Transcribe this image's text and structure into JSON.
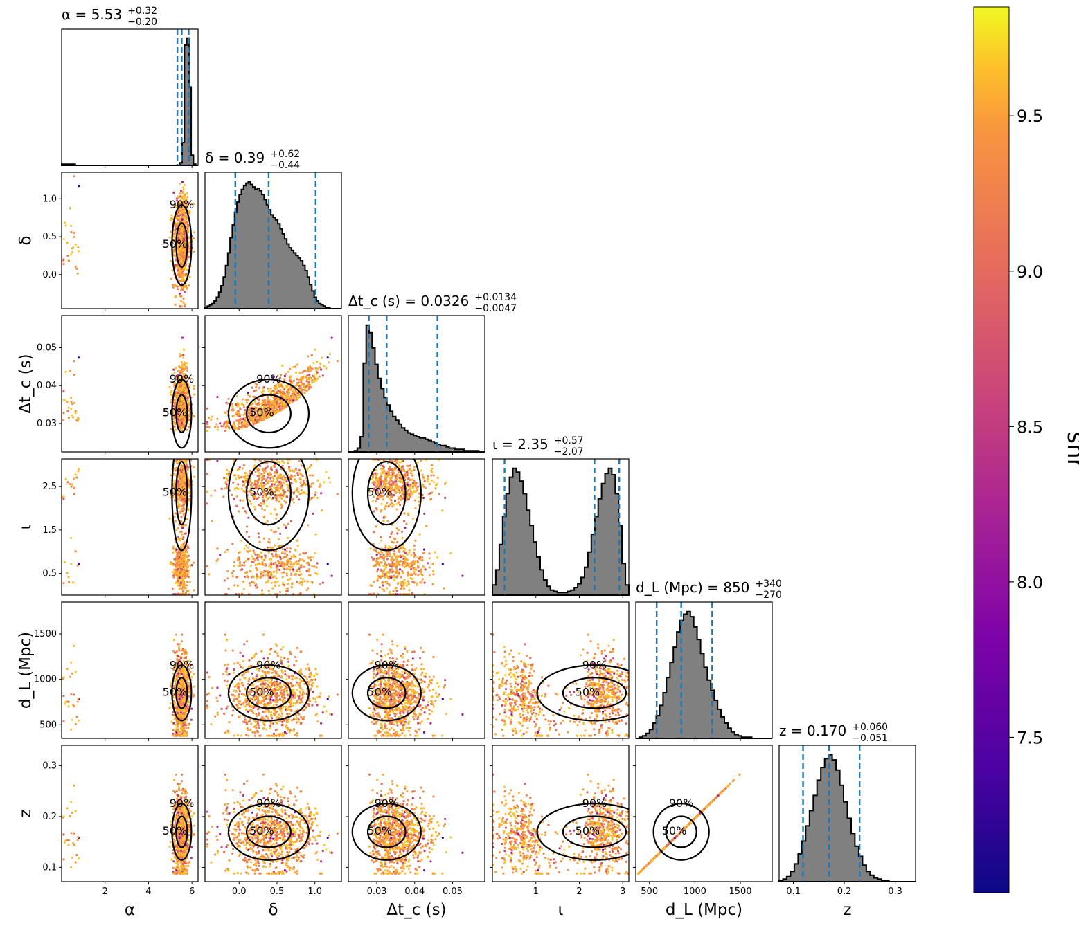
{
  "chart_data": {
    "type": "corner",
    "parameters": [
      {
        "key": "alpha",
        "label": "α",
        "median": "5.53",
        "plus": "+0.32",
        "minus": "−0.20",
        "title_prefix": "α = ",
        "range": [
          0,
          6.283
        ],
        "ticks": [
          2,
          4,
          6
        ],
        "tick_labels": [
          "2",
          "4",
          "6"
        ],
        "quantiles": [
          5.33,
          5.53,
          5.85
        ]
      },
      {
        "key": "delta",
        "label": "δ",
        "median": "0.39",
        "plus": "+0.62",
        "minus": "−0.44",
        "title_prefix": "δ = ",
        "range": [
          -0.45,
          1.35
        ],
        "ticks": [
          0.0,
          0.5,
          1.0
        ],
        "tick_labels": [
          "0.0",
          "0.5",
          "1.0"
        ],
        "quantiles": [
          -0.05,
          0.39,
          1.01
        ]
      },
      {
        "key": "dtc",
        "label": "Δt_c (s)",
        "median": "0.0326",
        "plus": "+0.0134",
        "minus": "−0.0047",
        "title_prefix": "Δt_c (s) = ",
        "range": [
          0.0225,
          0.0585
        ],
        "ticks": [
          0.03,
          0.04,
          0.05
        ],
        "tick_labels": [
          "0.03",
          "0.04",
          "0.05"
        ],
        "y_ticks": [
          0.03,
          0.04,
          0.05
        ],
        "y_tick_labels": [
          "0.03",
          "0.04",
          "0.05"
        ],
        "quantiles": [
          0.0279,
          0.0326,
          0.046
        ]
      },
      {
        "key": "iota",
        "label": "ι",
        "median": "2.35",
        "plus": "+0.57",
        "minus": "−2.07",
        "title_prefix": "ι = ",
        "range": [
          0.0,
          3.14
        ],
        "ticks": [
          1,
          2,
          3
        ],
        "tick_labels": [
          "1",
          "2",
          "3"
        ],
        "y_ticks": [
          0.5,
          1.5,
          2.5
        ],
        "y_tick_labels": [
          "0.5",
          "1.5",
          "2.5"
        ],
        "quantiles": [
          0.28,
          2.35,
          2.92
        ]
      },
      {
        "key": "dl",
        "label": "d_L (Mpc)",
        "median": "850",
        "plus": "+340",
        "minus": "−270",
        "title_prefix": "d_L (Mpc) = ",
        "range": [
          350,
          1850
        ],
        "ticks": [
          500,
          1000,
          1500
        ],
        "tick_labels": [
          "500",
          "1000",
          "1500"
        ],
        "quantiles": [
          580,
          850,
          1190
        ]
      },
      {
        "key": "z",
        "label": "z",
        "median": "0.170",
        "plus": "+0.060",
        "minus": "−0.051",
        "title_prefix": "z = ",
        "range": [
          0.072,
          0.34
        ],
        "ticks": [
          0.1,
          0.2,
          0.3
        ],
        "tick_labels": [
          "0.1",
          "0.2",
          "0.3"
        ],
        "quantiles": [
          0.119,
          0.17,
          0.23
        ]
      }
    ],
    "histograms": {
      "alpha": [
        1,
        1,
        1,
        1,
        1,
        1,
        0,
        0,
        0,
        0,
        0,
        0,
        0,
        0,
        0,
        0,
        0,
        0,
        0,
        0,
        0,
        0,
        0,
        0,
        0,
        0,
        0,
        0,
        0,
        0,
        0,
        0,
        0,
        0,
        0,
        0,
        0,
        0,
        0,
        0,
        0,
        0,
        0,
        0,
        0,
        0,
        0,
        0,
        0,
        0,
        0,
        0,
        2,
        18,
        95,
        100,
        62,
        8,
        1,
        0
      ],
      "delta": [
        1,
        2,
        3,
        4,
        6,
        9,
        13,
        18,
        25,
        34,
        44,
        56,
        66,
        76,
        84,
        90,
        94,
        97,
        99,
        100,
        98,
        96,
        94,
        95,
        93,
        90,
        86,
        82,
        78,
        74,
        72,
        70,
        67,
        63,
        59,
        55,
        51,
        48,
        46,
        44,
        42,
        40,
        38,
        34,
        30,
        25,
        19,
        14,
        9,
        6,
        4,
        3,
        2,
        1,
        1,
        0,
        0,
        0,
        0,
        0
      ],
      "dtc": [
        0,
        0,
        1,
        3,
        12,
        70,
        100,
        94,
        82,
        69,
        58,
        50,
        43,
        37,
        32,
        28,
        25,
        22,
        19,
        17,
        15,
        14,
        13,
        12,
        11,
        11,
        10,
        9,
        8,
        7,
        6,
        5,
        5,
        4,
        3,
        3,
        2,
        2,
        2,
        1,
        1,
        1,
        1,
        1,
        0,
        0
      ],
      "iota": [
        8,
        20,
        40,
        62,
        80,
        93,
        100,
        97,
        90,
        80,
        67,
        55,
        42,
        30,
        20,
        12,
        7,
        4,
        3,
        2,
        2,
        2,
        3,
        4,
        6,
        9,
        14,
        22,
        34,
        48,
        62,
        76,
        88,
        96,
        100,
        95,
        80,
        55,
        25,
        8
      ],
      "dl": [
        0,
        1,
        2,
        4,
        7,
        12,
        18,
        26,
        36,
        48,
        60,
        72,
        84,
        93,
        98,
        100,
        96,
        88,
        78,
        67,
        56,
        46,
        38,
        30,
        23,
        17,
        12,
        8,
        5,
        3,
        2,
        1,
        1,
        1,
        0,
        0,
        0,
        0,
        0,
        0
      ],
      "z": [
        1,
        2,
        4,
        8,
        14,
        22,
        32,
        44,
        56,
        68,
        80,
        90,
        97,
        100,
        96,
        88,
        76,
        63,
        50,
        38,
        28,
        20,
        13,
        8,
        5,
        3,
        2,
        1,
        1,
        0,
        0,
        0,
        0,
        0,
        0,
        0
      ]
    },
    "contour_labels": [
      "50%",
      "90%"
    ],
    "colorbar": {
      "label": "snr",
      "min": 7.0,
      "max": 9.85,
      "ticks": [
        "7.5",
        "8.0",
        "8.5",
        "9.0",
        "9.5"
      ],
      "tick_values": [
        7.5,
        8.0,
        8.5,
        9.0,
        9.5
      ],
      "colormap": "plasma"
    },
    "hist_fill": "#808080",
    "quantile_color": "#1f77b4"
  }
}
